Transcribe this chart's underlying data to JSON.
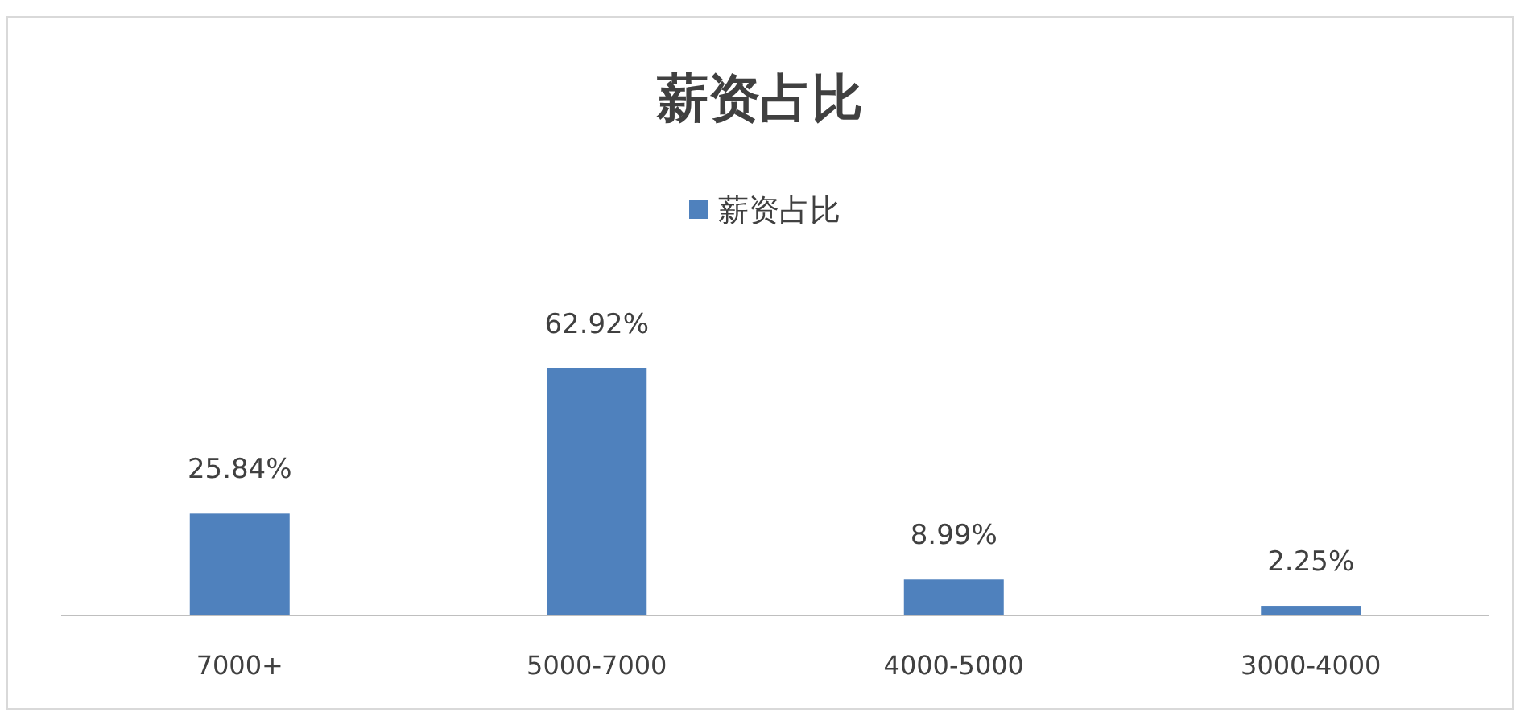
{
  "chart_data": {
    "type": "bar",
    "title": "薪资占比",
    "categories": [
      "7000+",
      "5000-7000",
      "4000-5000",
      "3000-4000"
    ],
    "series": [
      {
        "name": "薪资占比",
        "color": "#4f81bd",
        "values": [
          25.84,
          62.92,
          8.99,
          2.25
        ],
        "value_labels": [
          "25.84%",
          "62.92%",
          "8.99%",
          "2.25%"
        ]
      }
    ],
    "legend": "top"
  }
}
